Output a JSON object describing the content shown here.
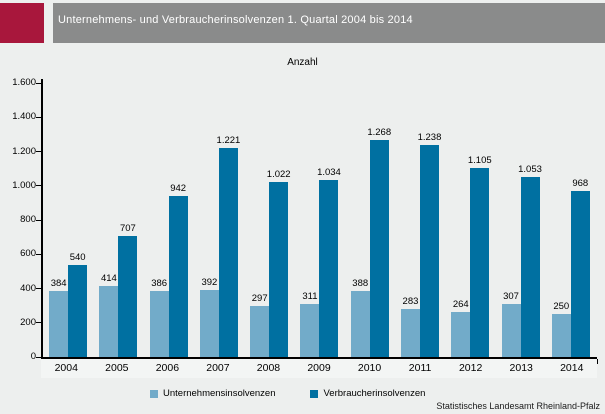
{
  "header": {
    "title": "Unternehmens- und Verbraucherinsolvenzen 1. Quartal 2004 bis 2014"
  },
  "chart_data": {
    "type": "bar",
    "title": "Anzahl",
    "categories": [
      "2004",
      "2005",
      "2006",
      "2007",
      "2008",
      "2009",
      "2010",
      "2011",
      "2012",
      "2013",
      "2014"
    ],
    "series": [
      {
        "name": "Unternehmensinsolvenzen",
        "color": "#72abc9",
        "values": [
          384,
          414,
          386,
          392,
          297,
          311,
          388,
          283,
          264,
          307,
          250
        ],
        "labels": [
          "384",
          "414",
          "386",
          "392",
          "297",
          "311",
          "388",
          "283",
          "264",
          "307",
          "250"
        ]
      },
      {
        "name": "Verbraucherinsolvenzen",
        "color": "#0070a1",
        "values": [
          540,
          707,
          942,
          1221,
          1022,
          1034,
          1268,
          1238,
          1105,
          1053,
          968
        ],
        "labels": [
          "540",
          "707",
          "942",
          "1.221",
          "1.022",
          "1.034",
          "1.268",
          "1.238",
          "1.105",
          "1.053",
          "968"
        ]
      }
    ],
    "xlabel": "",
    "ylabel": "Anzahl",
    "ylim": [
      0,
      1600
    ],
    "ytick_step": 200,
    "ytick_labels": [
      "0",
      "200",
      "400",
      "600",
      "800",
      "1.000",
      "1.200",
      "1.400",
      "1.600"
    ],
    "legend_position": "bottom",
    "grid": false
  },
  "footer": {
    "source": "Statistisches Landesamt Rheinland-Pfalz"
  },
  "colors": {
    "accent_red": "#a8173c",
    "header_gray": "#8a8b8b",
    "background": "#edefee",
    "series_light_blue": "#72abc9",
    "series_dark_blue": "#0070a1"
  }
}
